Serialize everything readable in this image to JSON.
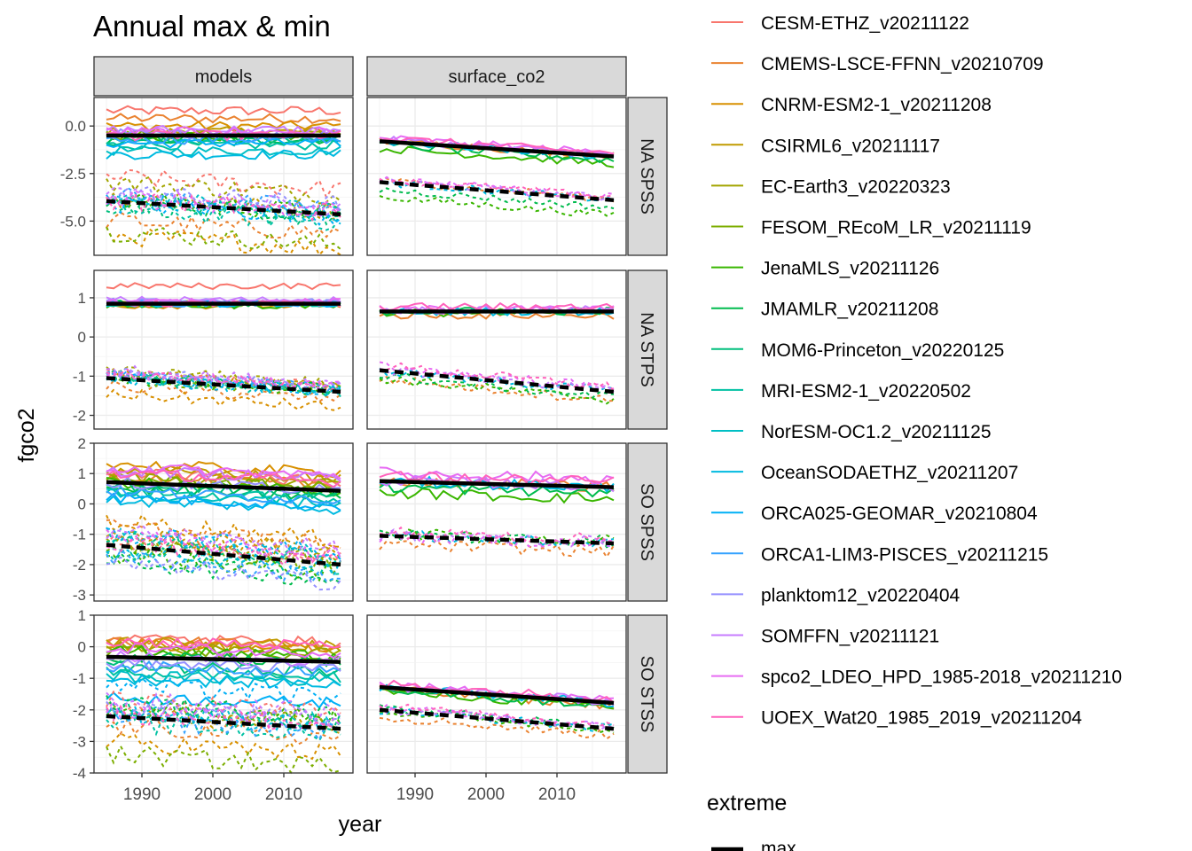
{
  "chart_data": {
    "type": "line",
    "title": "Annual max & min",
    "xlabel": "year",
    "ylabel": "fgco2",
    "xlim": [
      1985,
      2018
    ],
    "x_ticks": [
      1990,
      2000,
      2010
    ],
    "column_facets": [
      "models",
      "surface_co2"
    ],
    "row_facets": [
      {
        "label": "NA SPSS",
        "ylim": [
          -6.8,
          1.5
        ],
        "ticks": [
          -5.0,
          -2.5,
          0.0
        ],
        "tick_labels": [
          "-5.0",
          "-2.5",
          "0.0"
        ]
      },
      {
        "label": "NA STPS",
        "ylim": [
          -2.35,
          1.7
        ],
        "ticks": [
          -2,
          -1,
          0,
          1
        ],
        "tick_labels": [
          "-2",
          "-1",
          "0",
          "1"
        ]
      },
      {
        "label": "SO SPSS",
        "ylim": [
          -3.2,
          2.0
        ],
        "ticks": [
          -3,
          -2,
          -1,
          0,
          1,
          2
        ],
        "tick_labels": [
          "-3",
          "-2",
          "-1",
          "0",
          "1",
          "2"
        ]
      },
      {
        "label": "SO STSS",
        "ylim": [
          -4.0,
          1.0
        ],
        "ticks": [
          -4,
          -3,
          -2,
          -1,
          0,
          1
        ],
        "tick_labels": [
          "-4",
          "-3",
          "-2",
          "-1",
          "0",
          "1"
        ]
      }
    ],
    "trend_lines": [
      {
        "row": "NA SPSS",
        "col": "models",
        "max": [
          -0.5,
          -0.5
        ],
        "min": [
          -3.95,
          -4.65
        ]
      },
      {
        "row": "NA SPSS",
        "col": "surface_co2",
        "max": [
          -0.8,
          -1.6
        ],
        "min": [
          -2.95,
          -3.9
        ]
      },
      {
        "row": "NA STPS",
        "col": "models",
        "max": [
          0.85,
          0.85
        ],
        "min": [
          -1.05,
          -1.4
        ]
      },
      {
        "row": "NA STPS",
        "col": "surface_co2",
        "max": [
          0.65,
          0.65
        ],
        "min": [
          -0.85,
          -1.4
        ]
      },
      {
        "row": "SO SPSS",
        "col": "models",
        "max": [
          0.72,
          0.43
        ],
        "min": [
          -1.35,
          -2.0
        ]
      },
      {
        "row": "SO SPSS",
        "col": "surface_co2",
        "max": [
          0.75,
          0.55
        ],
        "min": [
          -1.05,
          -1.3
        ]
      },
      {
        "row": "SO STSS",
        "col": "models",
        "max": [
          -0.32,
          -0.48
        ],
        "min": [
          -2.2,
          -2.6
        ]
      },
      {
        "row": "SO STSS",
        "col": "surface_co2",
        "max": [
          -1.28,
          -1.78
        ],
        "min": [
          -2.0,
          -2.6
        ]
      }
    ],
    "legend_position": "right",
    "legend_models": [
      {
        "name": "CESM-ETHZ_v20211122",
        "color": "#F8766D"
      },
      {
        "name": "CMEMS-LSCE-FFNN_v20210709",
        "color": "#EA8331"
      },
      {
        "name": "CNRM-ESM2-1_v20211208",
        "color": "#D89000"
      },
      {
        "name": "CSIRML6_v20211117",
        "color": "#C09B00"
      },
      {
        "name": "EC-Earth3_v20220323",
        "color": "#A3A500"
      },
      {
        "name": "FESOM_REcoM_LR_v20211119",
        "color": "#7CAE00"
      },
      {
        "name": "JenaMLS_v20211126",
        "color": "#39B600"
      },
      {
        "name": "JMAMLR_v20211208",
        "color": "#00BB4E"
      },
      {
        "name": "MOM6-Princeton_v20220125",
        "color": "#00BF7D"
      },
      {
        "name": "MRI-ESM2-1_v20220502",
        "color": "#00C1A3"
      },
      {
        "name": "NorESM-OC1.2_v20211125",
        "color": "#00BFC4"
      },
      {
        "name": "OceanSODAETHZ_v20211207",
        "color": "#00BAE0"
      },
      {
        "name": "ORCA025-GEOMAR_v20210804",
        "color": "#00B0F6"
      },
      {
        "name": "ORCA1-LIM3-PISCES_v20211215",
        "color": "#35A2FF"
      },
      {
        "name": "planktom12_v20220404",
        "color": "#9590FF"
      },
      {
        "name": "SOMFFN_v20211121",
        "color": "#C77CFF"
      },
      {
        "name": "spco2_LDEO_HPD_1985-2018_v20211210",
        "color": "#E76BF3"
      },
      {
        "name": "UOEX_Wat20_1985_2019_v20211204",
        "color": "#FF62BC"
      }
    ],
    "legend_extreme": {
      "title": "extreme",
      "items": [
        "max"
      ]
    }
  }
}
